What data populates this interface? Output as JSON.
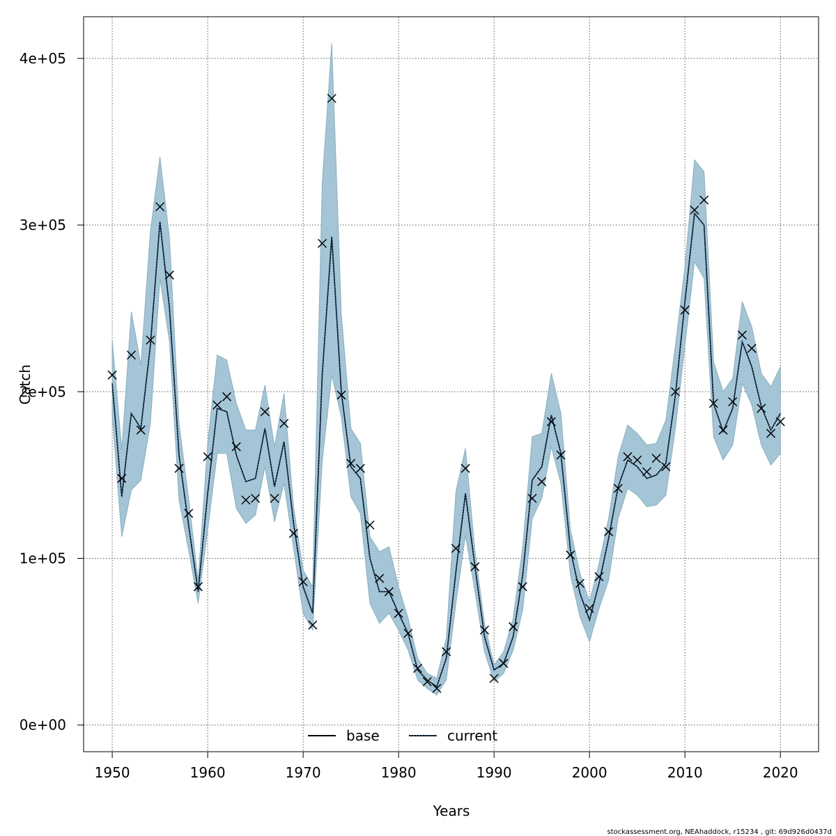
{
  "chart_data": {
    "type": "line",
    "title": "",
    "xlabel": "Years",
    "ylabel": "Catch",
    "xlim": [
      1947,
      2024
    ],
    "ylim": [
      -16000,
      425000
    ],
    "x_ticks": [
      1950,
      1960,
      1970,
      1980,
      1990,
      2000,
      2010,
      2020
    ],
    "x_tick_labels": [
      "1950",
      "1960",
      "1970",
      "1980",
      "1990",
      "2000",
      "2010",
      "2020"
    ],
    "y_ticks": [
      0,
      100000,
      200000,
      300000,
      400000
    ],
    "y_tick_labels": [
      "0e+00",
      "1e+05",
      "2e+05",
      "3e+05",
      "4e+05"
    ],
    "grid": true,
    "legend_position": "bottom-center",
    "legend": [
      {
        "label": "base",
        "style": "solid"
      },
      {
        "label": "current",
        "style": "dotted"
      }
    ],
    "colors": {
      "band_fill": "#a4c5d6",
      "band_edge": "#8aaebe",
      "base_line": "#000000",
      "current_line": "#1f4e79",
      "observed_marker": "#000000"
    },
    "x": [
      1950,
      1951,
      1952,
      1953,
      1954,
      1955,
      1956,
      1957,
      1958,
      1959,
      1960,
      1961,
      1962,
      1963,
      1964,
      1965,
      1966,
      1967,
      1968,
      1969,
      1970,
      1971,
      1972,
      1973,
      1974,
      1975,
      1976,
      1977,
      1978,
      1979,
      1980,
      1981,
      1982,
      1983,
      1984,
      1985,
      1986,
      1987,
      1988,
      1989,
      1990,
      1991,
      1992,
      1993,
      1994,
      1995,
      1996,
      1997,
      1998,
      1999,
      2000,
      2001,
      2002,
      2003,
      2004,
      2005,
      2006,
      2007,
      2008,
      2009,
      2010,
      2011,
      2012,
      2013,
      2014,
      2015,
      2016,
      2017,
      2018,
      2019,
      2020
    ],
    "series": [
      {
        "name": "observed",
        "marker": "x",
        "values": [
          210000,
          148000,
          222000,
          177000,
          231000,
          311000,
          270000,
          154000,
          127000,
          83000,
          161000,
          192000,
          197000,
          167000,
          135000,
          136000,
          188000,
          136000,
          181000,
          115000,
          86000,
          60000,
          289000,
          376000,
          198000,
          157000,
          154000,
          120000,
          88000,
          80000,
          67000,
          55000,
          34000,
          26000,
          22000,
          44000,
          106000,
          154000,
          95000,
          57000,
          28000,
          37000,
          59000,
          83000,
          136000,
          146000,
          182000,
          162000,
          102000,
          85000,
          70000,
          89000,
          116000,
          142000,
          161000,
          159000,
          152000,
          160000,
          155000,
          200000,
          249000,
          309000,
          315000,
          193000,
          177000,
          194000,
          234000,
          226000,
          190000,
          175000,
          182000
        ]
      },
      {
        "name": "base",
        "style": "solid",
        "values": [
          205000,
          137000,
          187000,
          178000,
          228000,
          302000,
          250000,
          162000,
          120000,
          80000,
          139000,
          190000,
          188000,
          162000,
          146000,
          148000,
          178000,
          143000,
          170000,
          121000,
          83000,
          67000,
          210000,
          293000,
          200000,
          155000,
          148000,
          100000,
          80000,
          80000,
          67000,
          55000,
          33000,
          27000,
          23000,
          40000,
          92000,
          139000,
          95000,
          53000,
          33000,
          37000,
          53000,
          90000,
          147000,
          155000,
          186000,
          163000,
          105000,
          79000,
          63000,
          85000,
          112000,
          143000,
          159000,
          155000,
          148000,
          150000,
          157000,
          198000,
          254000,
          307000,
          300000,
          193000,
          176000,
          190000,
          230000,
          215000,
          191000,
          177000,
          187000
        ]
      },
      {
        "name": "current",
        "style": "dotted",
        "values": [
          205000,
          137000,
          187000,
          178000,
          228000,
          302000,
          250000,
          162000,
          120000,
          80000,
          139000,
          190000,
          188000,
          162000,
          146000,
          148000,
          178000,
          143000,
          170000,
          121000,
          83000,
          67000,
          210000,
          293000,
          200000,
          155000,
          148000,
          100000,
          80000,
          80000,
          67000,
          55000,
          33000,
          27000,
          23000,
          40000,
          92000,
          139000,
          95000,
          53000,
          33000,
          37000,
          53000,
          90000,
          147000,
          155000,
          186000,
          163000,
          105000,
          79000,
          63000,
          85000,
          112000,
          143000,
          159000,
          155000,
          148000,
          150000,
          157000,
          198000,
          254000,
          307000,
          300000,
          193000,
          176000,
          190000,
          230000,
          215000,
          191000,
          177000,
          187000
        ]
      },
      {
        "name": "lower",
        "values": [
          185000,
          113000,
          141000,
          147000,
          181000,
          268000,
          230000,
          135000,
          105000,
          73000,
          117000,
          163000,
          163000,
          130000,
          121000,
          126000,
          155000,
          122000,
          145000,
          106000,
          67000,
          57000,
          158000,
          210000,
          185000,
          137000,
          127000,
          73000,
          61000,
          67000,
          57000,
          45000,
          27000,
          22000,
          18000,
          27000,
          73000,
          114000,
          80000,
          44000,
          26000,
          31000,
          45000,
          69000,
          124000,
          136000,
          167000,
          145000,
          90000,
          65000,
          50000,
          70000,
          87000,
          124000,
          142000,
          138000,
          131000,
          132000,
          138000,
          178000,
          228000,
          278000,
          268000,
          173000,
          159000,
          168000,
          205000,
          192000,
          168000,
          156000,
          163000
        ]
      },
      {
        "name": "upper",
        "values": [
          231000,
          165000,
          248000,
          216000,
          296000,
          341000,
          292000,
          181000,
          136000,
          87000,
          169000,
          222000,
          219000,
          193000,
          177000,
          177000,
          204000,
          167000,
          199000,
          131000,
          93000,
          83000,
          325000,
          409000,
          247000,
          178000,
          169000,
          113000,
          104000,
          107000,
          83000,
          64000,
          40000,
          31000,
          28000,
          52000,
          140000,
          166000,
          104000,
          61000,
          36000,
          44000,
          64000,
          107000,
          173000,
          175000,
          211000,
          187000,
          117000,
          91000,
          74000,
          97000,
          124000,
          161000,
          180000,
          175000,
          168000,
          169000,
          183000,
          228000,
          275000,
          339000,
          332000,
          218000,
          200000,
          208000,
          254000,
          239000,
          211000,
          203000,
          215000
        ]
      }
    ]
  },
  "footer": {
    "text": "stockassessment.org, NEAhaddock, r15234 , git: 69d926d0437d"
  }
}
